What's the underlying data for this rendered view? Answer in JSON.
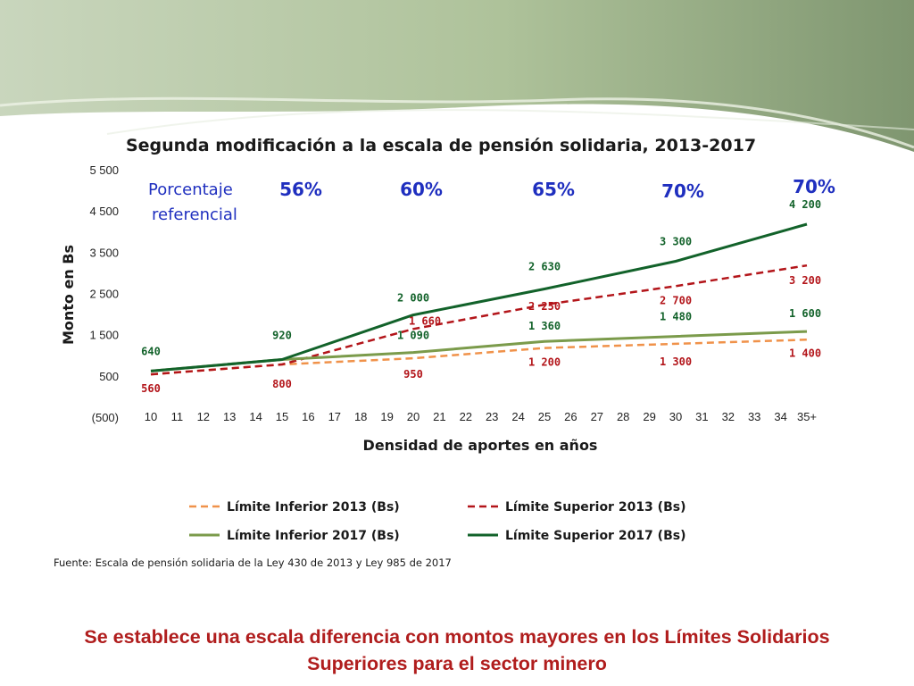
{
  "chart_data": {
    "type": "line",
    "title": "Segunda modificación a la escala de pensión solidaria, 2013-2017",
    "xlabel": "Densidad de aportes en años",
    "ylabel": "Monto en Bs",
    "categories": [
      "10",
      "11",
      "12",
      "13",
      "14",
      "15",
      "16",
      "17",
      "18",
      "19",
      "20",
      "21",
      "22",
      "23",
      "24",
      "25",
      "26",
      "27",
      "28",
      "29",
      "30",
      "31",
      "32",
      "33",
      "34",
      "35+"
    ],
    "y_ticks": [
      "(500)",
      "500",
      "1 500",
      "2 500",
      "3 500",
      "4 500",
      "5 500"
    ],
    "y_tick_values": [
      -500,
      500,
      1500,
      2500,
      3500,
      4500,
      5500
    ],
    "ylim": [
      -500,
      5500
    ],
    "grid": false,
    "legend_position": "bottom",
    "series": [
      {
        "name": "Límite Inferior 2013 (Bs)",
        "color": "#f0924a",
        "dash": true,
        "width": 2.5,
        "points": [
          {
            "x": "10",
            "y": 560
          },
          {
            "x": "15",
            "y": 800
          },
          {
            "x": "20",
            "y": 950
          },
          {
            "x": "25",
            "y": 1200
          },
          {
            "x": "30",
            "y": 1300
          },
          {
            "x": "35+",
            "y": 1400
          }
        ]
      },
      {
        "name": "Límite Superior 2013 (Bs)",
        "color": "#b3151a",
        "dash": true,
        "width": 2.5,
        "points": [
          {
            "x": "10",
            "y": 560
          },
          {
            "x": "15",
            "y": 800
          },
          {
            "x": "20",
            "y": 1660
          },
          {
            "x": "25",
            "y": 2250
          },
          {
            "x": "30",
            "y": 2700
          },
          {
            "x": "35+",
            "y": 3200
          }
        ]
      },
      {
        "name": "Límite Inferior 2017 (Bs)",
        "color": "#7b9b4b",
        "dash": false,
        "width": 3,
        "points": [
          {
            "x": "10",
            "y": 640
          },
          {
            "x": "15",
            "y": 920
          },
          {
            "x": "20",
            "y": 1090
          },
          {
            "x": "25",
            "y": 1360
          },
          {
            "x": "30",
            "y": 1480
          },
          {
            "x": "35+",
            "y": 1600
          }
        ]
      },
      {
        "name": "Límite Superior 2017 (Bs)",
        "color": "#12622a",
        "dash": false,
        "width": 3,
        "points": [
          {
            "x": "10",
            "y": 640
          },
          {
            "x": "15",
            "y": 920
          },
          {
            "x": "20",
            "y": 2000
          },
          {
            "x": "25",
            "y": 2630
          },
          {
            "x": "30",
            "y": 3300
          },
          {
            "x": "35+",
            "y": 4200
          }
        ]
      }
    ],
    "data_labels": [
      {
        "text": "640",
        "x": "10",
        "y": 640,
        "color": "#12622a"
      },
      {
        "text": "560",
        "x": "10",
        "y": 560,
        "color": "#b3151a"
      },
      {
        "text": "920",
        "x": "15",
        "y": 920,
        "color": "#12622a"
      },
      {
        "text": "800",
        "x": "15",
        "y": 800,
        "color": "#b3151a"
      },
      {
        "text": "2 000",
        "x": "20",
        "y": 2000,
        "color": "#12622a"
      },
      {
        "text": "1 660",
        "x": "20",
        "y": 1660,
        "color": "#b3151a"
      },
      {
        "text": "1 090",
        "x": "20",
        "y": 1090,
        "color": "#12622a"
      },
      {
        "text": "950",
        "x": "20",
        "y": 950,
        "color": "#b3151a"
      },
      {
        "text": "2 630",
        "x": "25",
        "y": 2630,
        "color": "#12622a"
      },
      {
        "text": "2 250",
        "x": "25",
        "y": 2250,
        "color": "#b3151a"
      },
      {
        "text": "1 360",
        "x": "25",
        "y": 1360,
        "color": "#12622a"
      },
      {
        "text": "1 200",
        "x": "25",
        "y": 1200,
        "color": "#b3151a"
      },
      {
        "text": "3 300",
        "x": "30",
        "y": 3300,
        "color": "#12622a"
      },
      {
        "text": "2 700",
        "x": "30",
        "y": 2700,
        "color": "#b3151a"
      },
      {
        "text": "1 480",
        "x": "30",
        "y": 1480,
        "color": "#12622a"
      },
      {
        "text": "1 300",
        "x": "30",
        "y": 1300,
        "color": "#b3151a"
      },
      {
        "text": "4 200",
        "x": "35+",
        "y": 4200,
        "color": "#12622a"
      },
      {
        "text": "3 200",
        "x": "35+",
        "y": 3200,
        "color": "#b3151a"
      },
      {
        "text": "1 600",
        "x": "35+",
        "y": 1600,
        "color": "#12622a"
      },
      {
        "text": "1 400",
        "x": "35+",
        "y": 1400,
        "color": "#b3151a"
      }
    ],
    "annotations": {
      "reference_label_line1": "Porcentaje",
      "reference_label_line2": "referencial",
      "percentages": [
        "56%",
        "60%",
        "65%",
        "70%",
        "70%"
      ]
    }
  },
  "source": "Fuente: Escala de pensión solidaria de la Ley 430  de 2013 y Ley  985 de 2017",
  "conclusion_line1": "Se establece una escala diferencia con montos mayores en los Límites Solidarios",
  "conclusion_line2": "Superiores para el sector minero"
}
